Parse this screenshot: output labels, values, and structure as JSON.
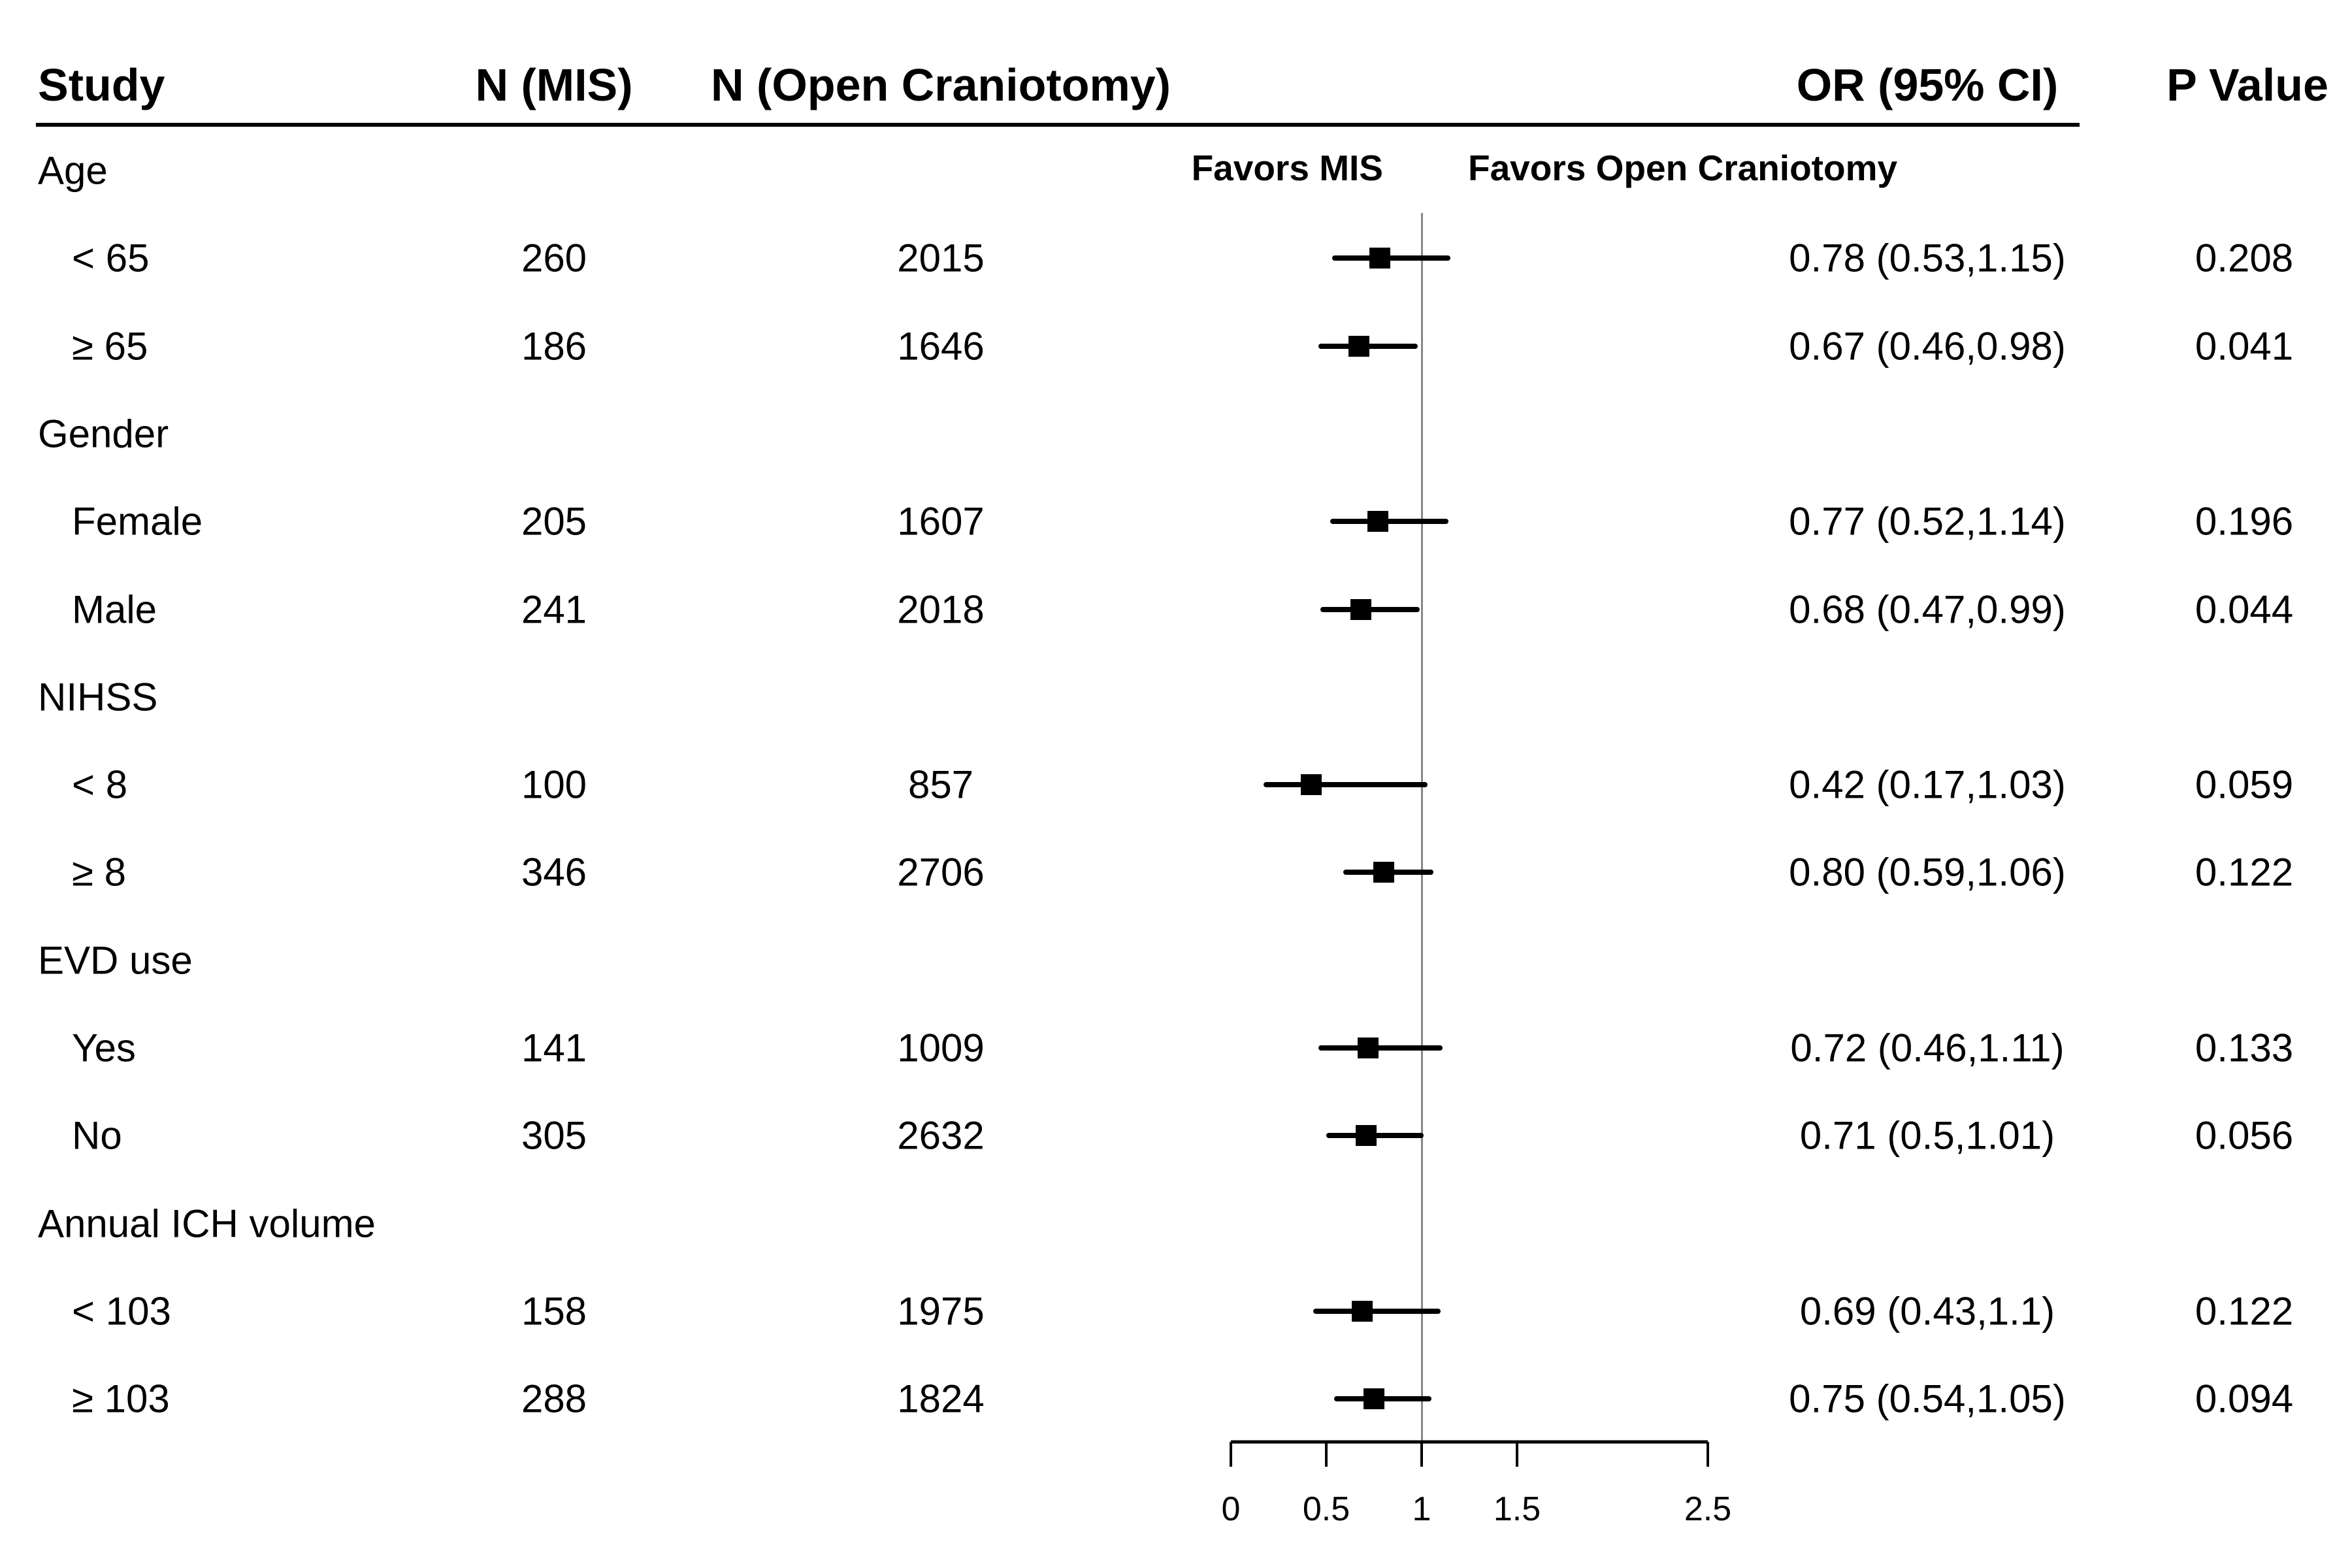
{
  "table": {
    "headers": {
      "study": "Study",
      "n_mis": "N (MIS)",
      "n_open": "N (Open Craniotomy)",
      "or_ci": "OR (95% CI)",
      "p_value": "P Value"
    },
    "plot_labels": {
      "left": "Favors MIS",
      "right": "Favors Open Craniotomy"
    }
  },
  "colors": {
    "text": "#000000",
    "marker": "#000000",
    "reference_line": "#878787",
    "background": "#ffffff"
  },
  "chart_data": {
    "type": "forest",
    "x_axis": {
      "range": [
        0,
        2.5
      ],
      "ticks": [
        0,
        0.5,
        1,
        1.5,
        2.5
      ],
      "tick_labels": [
        "0",
        "0.5",
        "1",
        "1.5",
        "2.5"
      ],
      "reference_line": 1,
      "scale": "linear"
    },
    "groups": [
      {
        "label": "Age",
        "rows": [
          {
            "label": "< 65",
            "n_mis": "260",
            "n_open": "2015",
            "or": 0.78,
            "lo": 0.53,
            "hi": 1.15,
            "or_ci": "0.78 (0.53,1.15)",
            "p": "0.208"
          },
          {
            "label": "≥ 65",
            "n_mis": "186",
            "n_open": "1646",
            "or": 0.67,
            "lo": 0.46,
            "hi": 0.98,
            "or_ci": "0.67 (0.46,0.98)",
            "p": "0.041"
          }
        ]
      },
      {
        "label": "Gender",
        "rows": [
          {
            "label": "Female",
            "n_mis": "205",
            "n_open": "1607",
            "or": 0.77,
            "lo": 0.52,
            "hi": 1.14,
            "or_ci": "0.77 (0.52,1.14)",
            "p": "0.196"
          },
          {
            "label": "Male",
            "n_mis": "241",
            "n_open": "2018",
            "or": 0.68,
            "lo": 0.47,
            "hi": 0.99,
            "or_ci": "0.68 (0.47,0.99)",
            "p": "0.044"
          }
        ]
      },
      {
        "label": "NIHSS",
        "rows": [
          {
            "label": "< 8",
            "n_mis": "100",
            "n_open": "857",
            "or": 0.42,
            "lo": 0.17,
            "hi": 1.03,
            "or_ci": "0.42 (0.17,1.03)",
            "p": "0.059"
          },
          {
            "label": "≥ 8",
            "n_mis": "346",
            "n_open": "2706",
            "or": 0.8,
            "lo": 0.59,
            "hi": 1.06,
            "or_ci": "0.80 (0.59,1.06)",
            "p": "0.122"
          }
        ]
      },
      {
        "label": "EVD use",
        "rows": [
          {
            "label": "Yes",
            "n_mis": "141",
            "n_open": "1009",
            "or": 0.72,
            "lo": 0.46,
            "hi": 1.11,
            "or_ci": "0.72 (0.46,1.11)",
            "p": "0.133"
          },
          {
            "label": "No",
            "n_mis": "305",
            "n_open": "2632",
            "or": 0.71,
            "lo": 0.5,
            "hi": 1.01,
            "or_ci": "0.71 (0.5,1.01)",
            "p": "0.056"
          }
        ]
      },
      {
        "label": "Annual ICH volume",
        "rows": [
          {
            "label": "< 103",
            "n_mis": "158",
            "n_open": "1975",
            "or": 0.69,
            "lo": 0.43,
            "hi": 1.1,
            "or_ci": "0.69 (0.43,1.1)",
            "p": "0.122"
          },
          {
            "label": "≥ 103",
            "n_mis": "288",
            "n_open": "1824",
            "or": 0.75,
            "lo": 0.54,
            "hi": 1.05,
            "or_ci": "0.75 (0.54,1.05)",
            "p": "0.094"
          }
        ]
      }
    ]
  }
}
